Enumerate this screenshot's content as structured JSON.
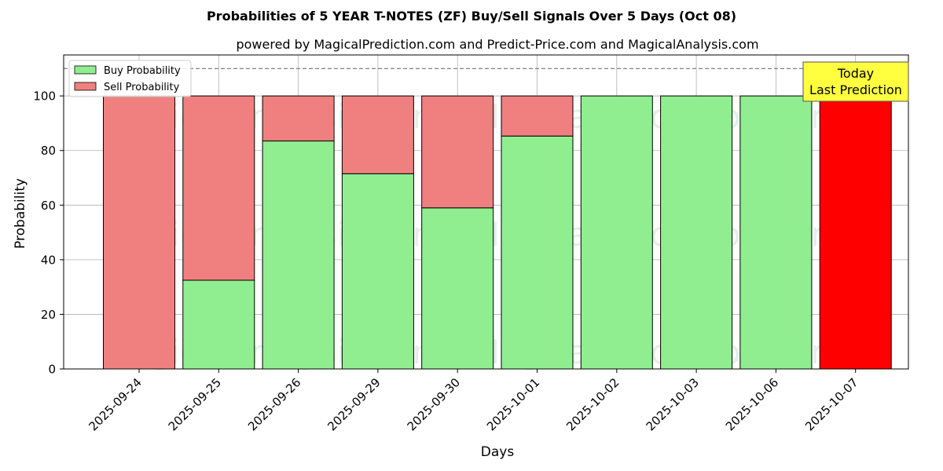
{
  "chart_data": {
    "type": "bar",
    "stacked": true,
    "title": "Probabilities of 5 YEAR T-NOTES (ZF) Buy/Sell Signals Over 5 Days (Oct 08)",
    "subtitle": "powered by MagicalPrediction.com and Predict-Price.com and MagicalAnalysis.com",
    "xlabel": "Days",
    "ylabel": "Probability",
    "ylim": [
      0,
      115
    ],
    "yticks": [
      0,
      20,
      40,
      60,
      80,
      100
    ],
    "grid": true,
    "reference_line": 110,
    "legend_position": "top-left",
    "categories": [
      "2025-09-24",
      "2025-09-25",
      "2025-09-26",
      "2025-09-29",
      "2025-09-30",
      "2025-10-01",
      "2025-10-02",
      "2025-10-03",
      "2025-10-06",
      "2025-10-07"
    ],
    "series": [
      {
        "name": "Buy Probability",
        "color": "#90ee90",
        "values": [
          0,
          32.5,
          83.5,
          71.5,
          59,
          85.3,
          100,
          100,
          100,
          0
        ]
      },
      {
        "name": "Sell Probability",
        "color": "#f08080",
        "values": [
          100,
          67.5,
          16.5,
          28.5,
          41,
          14.7,
          0,
          0,
          0,
          100
        ]
      }
    ],
    "highlight": {
      "category": "2025-10-07",
      "color": "#ff0000"
    },
    "annotation": {
      "line1": "Today",
      "line2": "Last Prediction",
      "color": "#ffff40"
    },
    "watermarks": [
      "MagicalAnalysis.com",
      "MagicalPrediction.com"
    ]
  }
}
